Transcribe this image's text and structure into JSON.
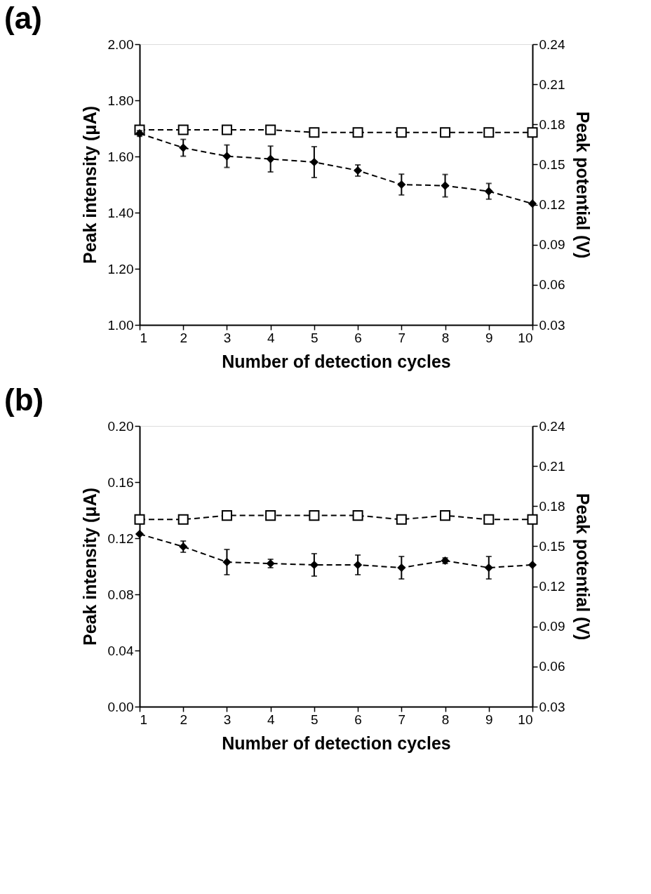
{
  "chart_data": [
    {
      "type": "line",
      "title": "(a)",
      "xlabel": "Number of detection cycles",
      "ylabel": "Peak intensity (μA)",
      "y2label": "Peak potential (V)",
      "x": [
        1,
        2,
        3,
        4,
        5,
        6,
        7,
        8,
        9,
        10
      ],
      "xlim": [
        1,
        10
      ],
      "xticks": [
        1,
        2,
        3,
        4,
        5,
        6,
        7,
        8,
        9,
        10
      ],
      "ylim": [
        1,
        2
      ],
      "yticks": [
        {
          "value": 1,
          "label": "1.00"
        },
        {
          "value": 1.2,
          "label": "1.20"
        },
        {
          "value": 1.4,
          "label": "1.40"
        },
        {
          "value": 1.6,
          "label": "1.60"
        },
        {
          "value": 1.8,
          "label": "1.80"
        },
        {
          "value": 2,
          "label": "2.00"
        }
      ],
      "y2lim": [
        0.03,
        0.24
      ],
      "y2ticks": [
        {
          "value": 0.03,
          "label": "0.03"
        },
        {
          "value": 0.06,
          "label": "0.06"
        },
        {
          "value": 0.09,
          "label": "0.09"
        },
        {
          "value": 0.12,
          "label": "0.12"
        },
        {
          "value": 0.15,
          "label": "0.15"
        },
        {
          "value": 0.18,
          "label": "0.18"
        },
        {
          "value": 0.21,
          "label": "0.21"
        },
        {
          "value": 0.24,
          "label": "0.24"
        }
      ],
      "line_style": "dashed",
      "grid": false,
      "series": [
        {
          "color": "#000000",
          "marker": "diamond",
          "values": [
            1.682,
            1.631,
            1.601,
            1.591,
            1.58,
            1.55,
            1.5,
            1.496,
            1.476,
            1.432
          ],
          "errors": [
            0.01,
            0.03,
            0.04,
            0.046,
            0.055,
            0.02,
            0.037,
            0.04,
            0.028,
            null
          ]
        },
        {
          "color": "#000000",
          "marker": "square",
          "axis": "y2",
          "values": [
            0.176,
            0.176,
            0.176,
            0.176,
            0.174,
            0.174,
            0.174,
            0.174,
            0.174,
            0.174
          ]
        }
      ]
    },
    {
      "type": "line",
      "title": "(b)",
      "xlabel": "Number of detection cycles",
      "ylabel": "Peak intensity (μA)",
      "y2label": "Peak potential (V)",
      "x": [
        1,
        2,
        3,
        4,
        5,
        6,
        7,
        8,
        9,
        10
      ],
      "xlim": [
        1,
        10
      ],
      "xticks": [
        1,
        2,
        3,
        4,
        5,
        6,
        7,
        8,
        9,
        10
      ],
      "ylim": [
        0,
        0.2
      ],
      "yticks": [
        {
          "value": 0,
          "label": "0.00"
        },
        {
          "value": 0.04,
          "label": "0.04"
        },
        {
          "value": 0.08,
          "label": "0.08"
        },
        {
          "value": 0.12,
          "label": "0.12"
        },
        {
          "value": 0.16,
          "label": "0.16"
        },
        {
          "value": 0.2,
          "label": "0.20"
        }
      ],
      "y2lim": [
        0.03,
        0.24
      ],
      "y2ticks": [
        {
          "value": 0.03,
          "label": "0.03"
        },
        {
          "value": 0.06,
          "label": "0.06"
        },
        {
          "value": 0.09,
          "label": "0.09"
        },
        {
          "value": 0.12,
          "label": "0.12"
        },
        {
          "value": 0.15,
          "label": "0.15"
        },
        {
          "value": 0.18,
          "label": "0.18"
        },
        {
          "value": 0.21,
          "label": "0.21"
        },
        {
          "value": 0.24,
          "label": "0.24"
        }
      ],
      "line_style": "dashed",
      "grid": false,
      "series": [
        {
          "color": "#000000",
          "marker": "diamond",
          "values": [
            0.123,
            0.114,
            0.103,
            0.102,
            0.101,
            0.101,
            0.099,
            0.104,
            0.099,
            0.101
          ],
          "errors": [
            null,
            0.004,
            0.009,
            0.003,
            0.008,
            0.007,
            0.008,
            0.002,
            0.008,
            null
          ]
        },
        {
          "color": "#000000",
          "marker": "square",
          "axis": "y2",
          "values": [
            0.17,
            0.17,
            0.173,
            0.173,
            0.173,
            0.173,
            0.17,
            0.173,
            0.17,
            0.17
          ]
        }
      ]
    }
  ]
}
